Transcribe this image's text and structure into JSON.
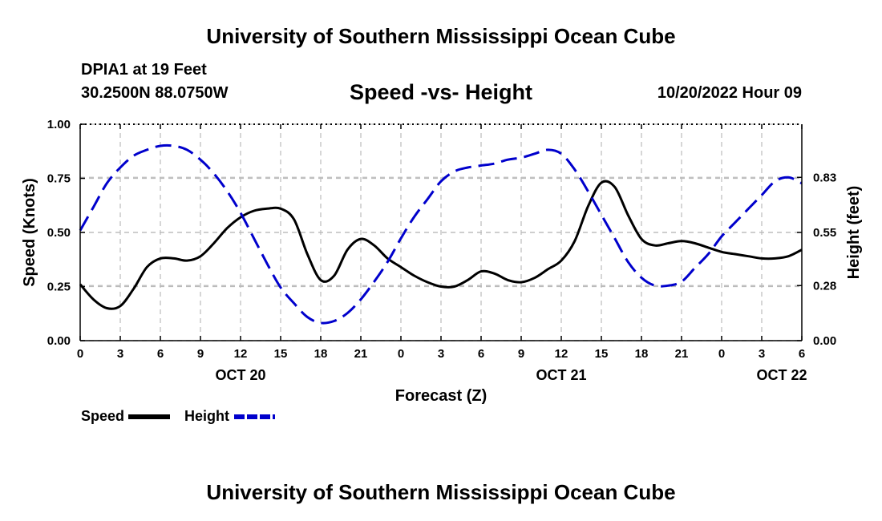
{
  "header": {
    "main_title": "University of Southern Mississippi Ocean Cube",
    "station": "DPIA1 at 19 Feet",
    "coords": "30.2500N  88.0750W",
    "subtitle": "Speed -vs- Height",
    "datetime": "10/20/2022 Hour 09"
  },
  "footer": {
    "second_title": "University of Southern Mississippi Ocean Cube"
  },
  "chart_data": {
    "type": "line",
    "xlabel": "Forecast (Z)",
    "ylabel_left": "Speed (Knots)",
    "ylabel_right": "Height (feet)",
    "x_unit": "hours since Oct 20 00Z",
    "xlim": [
      0,
      54
    ],
    "ylim_left": [
      0,
      1
    ],
    "ylim_right": [
      0,
      1.1
    ],
    "y_ticks_left": [
      "0.00",
      "0.25",
      "0.50",
      "0.75",
      "1.00"
    ],
    "y_ticks_left_values": [
      0,
      0.25,
      0.5,
      0.75,
      1.0
    ],
    "y_ticks_right": [
      "0.00",
      "0.28",
      "0.55",
      "0.83"
    ],
    "y_ticks_right_values": [
      0,
      0.28,
      0.55,
      0.83
    ],
    "x_tick_hours": [
      0,
      3,
      6,
      9,
      12,
      15,
      18,
      21,
      24,
      27,
      30,
      33,
      36,
      39,
      42,
      45,
      48,
      51,
      54
    ],
    "x_tick_labels": [
      "0",
      "3",
      "6",
      "9",
      "12",
      "15",
      "18",
      "21",
      "0",
      "3",
      "6",
      "9",
      "12",
      "15",
      "18",
      "21",
      "0",
      "3",
      "6"
    ],
    "day_labels": [
      {
        "hour": 12,
        "label": "OCT 20"
      },
      {
        "hour": 36,
        "label": "OCT 21"
      },
      {
        "hour": 52.5,
        "label": "OCT 22"
      }
    ],
    "grid": true,
    "legend": {
      "position": "bottom-left",
      "items": [
        {
          "label": "Speed",
          "color": "#000000",
          "style": "solid"
        },
        {
          "label": "Height",
          "color": "#0000cc",
          "style": "dashed"
        }
      ]
    },
    "series": [
      {
        "name": "Speed",
        "axis": "left",
        "color": "#000000",
        "x": [
          0,
          1,
          2,
          3,
          4,
          5,
          6,
          7,
          8,
          9,
          10,
          11,
          12,
          13,
          14,
          15,
          16,
          17,
          18,
          19,
          20,
          21,
          22,
          23,
          24,
          25,
          26,
          27,
          28,
          29,
          30,
          31,
          32,
          33,
          34,
          35,
          36,
          37,
          38,
          39,
          40,
          41,
          42,
          43,
          44,
          45,
          46,
          47,
          48,
          49,
          50,
          51,
          52,
          53,
          54
        ],
        "values": [
          0.26,
          0.19,
          0.15,
          0.16,
          0.24,
          0.34,
          0.38,
          0.38,
          0.37,
          0.39,
          0.45,
          0.52,
          0.57,
          0.6,
          0.61,
          0.61,
          0.56,
          0.4,
          0.28,
          0.3,
          0.42,
          0.47,
          0.44,
          0.38,
          0.34,
          0.3,
          0.27,
          0.25,
          0.25,
          0.28,
          0.32,
          0.31,
          0.28,
          0.27,
          0.29,
          0.33,
          0.37,
          0.46,
          0.62,
          0.73,
          0.71,
          0.58,
          0.47,
          0.44,
          0.45,
          0.46,
          0.45,
          0.43,
          0.41,
          0.4,
          0.39,
          0.38,
          0.38,
          0.39,
          0.42
        ]
      },
      {
        "name": "Height",
        "axis": "right",
        "color": "#0000cc",
        "x": [
          0,
          1,
          2,
          3,
          4,
          5,
          6,
          7,
          8,
          9,
          10,
          11,
          12,
          13,
          14,
          15,
          16,
          17,
          18,
          19,
          20,
          21,
          22,
          23,
          24,
          25,
          26,
          27,
          28,
          29,
          30,
          31,
          32,
          33,
          34,
          35,
          36,
          37,
          38,
          39,
          40,
          41,
          42,
          43,
          44,
          45,
          46,
          47,
          48,
          49,
          50,
          51,
          52,
          53,
          54
        ],
        "values": [
          0.56,
          0.68,
          0.8,
          0.88,
          0.94,
          0.97,
          0.99,
          0.99,
          0.97,
          0.92,
          0.85,
          0.76,
          0.65,
          0.52,
          0.39,
          0.27,
          0.19,
          0.12,
          0.09,
          0.1,
          0.14,
          0.21,
          0.3,
          0.4,
          0.52,
          0.63,
          0.72,
          0.81,
          0.86,
          0.88,
          0.89,
          0.9,
          0.92,
          0.93,
          0.95,
          0.97,
          0.95,
          0.87,
          0.76,
          0.64,
          0.52,
          0.4,
          0.32,
          0.28,
          0.28,
          0.3,
          0.37,
          0.44,
          0.53,
          0.6,
          0.67,
          0.74,
          0.81,
          0.83,
          0.8
        ]
      }
    ]
  }
}
